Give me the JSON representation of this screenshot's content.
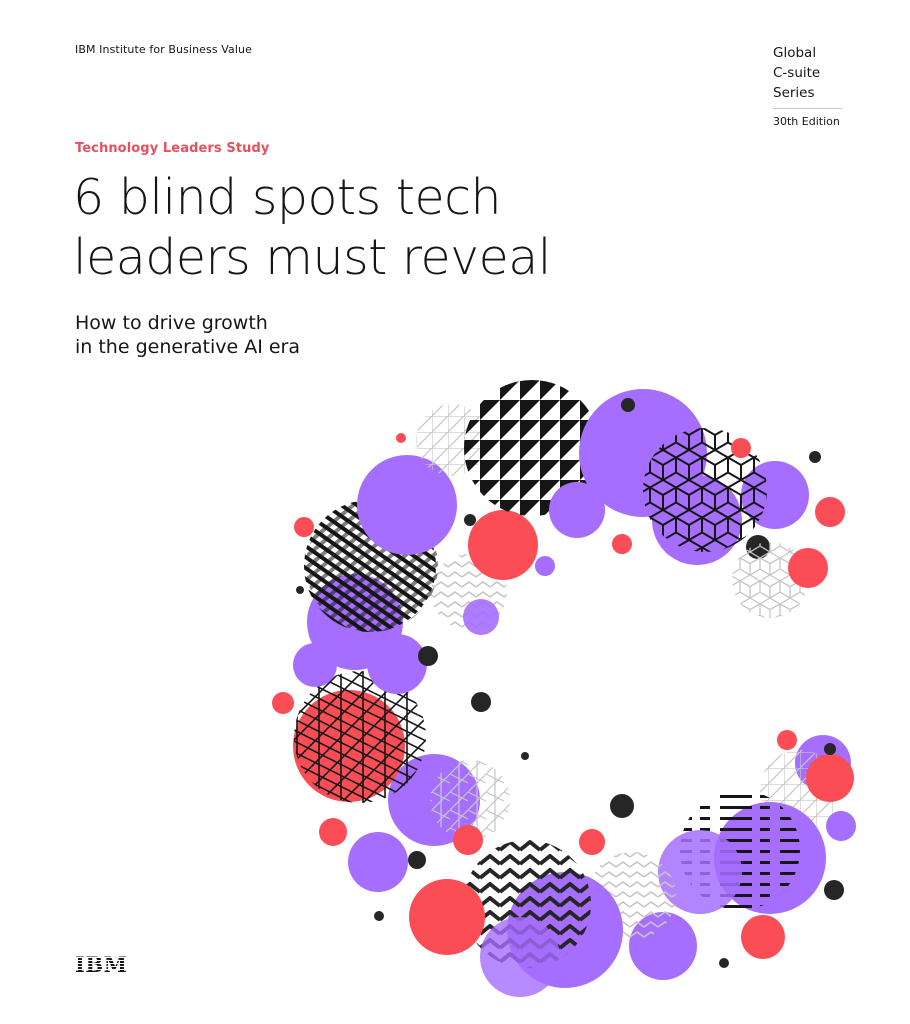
{
  "header": {
    "institute": "IBM Institute for Business Value",
    "series_lines": [
      "Global",
      "C-suite",
      "Series"
    ],
    "edition": "30th Edition"
  },
  "cover": {
    "kicker": "Technology Leaders Study",
    "title_lines": [
      "6 blind spots tech",
      "leaders must reveal"
    ],
    "subtitle_lines": [
      "How to drive growth",
      "in the generative AI era"
    ]
  },
  "artwork": {
    "name": "C-shaped circle pattern illustration"
  },
  "colors": {
    "accent": "#e8505b",
    "purple": "#a56eff",
    "red": "#fa4d56",
    "dark": "#262626"
  },
  "footer": {
    "logo": "IBM"
  }
}
